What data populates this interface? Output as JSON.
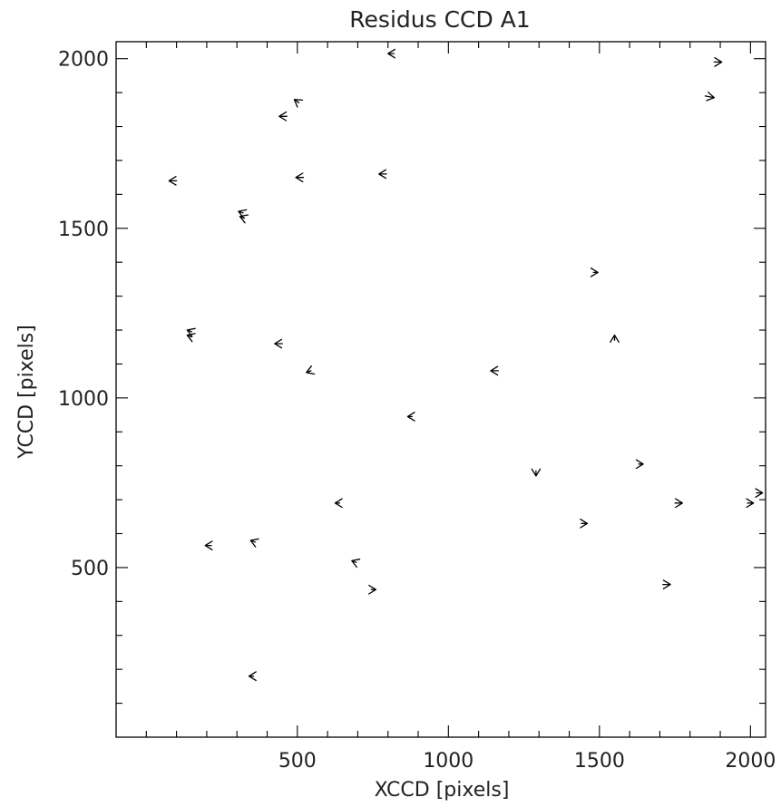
{
  "chart_data": {
    "type": "vector-field",
    "title": "Residus CCD A1",
    "xlabel": "XCCD [pixels]",
    "ylabel": "YCCD [pixels]",
    "xlim": [
      -100,
      2050
    ],
    "ylim": [
      0,
      2050
    ],
    "x_ticks": [
      500,
      1000,
      1500,
      2000
    ],
    "y_ticks": [
      500,
      1000,
      1500,
      2000
    ],
    "x_minor_step": 100,
    "y_minor_step": 100,
    "grid": false,
    "vectors": [
      {
        "x": 820,
        "y": 2015,
        "dx": -20,
        "dy": 0
      },
      {
        "x": 1880,
        "y": 1990,
        "dx": 25,
        "dy": 0
      },
      {
        "x": 1850,
        "y": 1890,
        "dx": 30,
        "dy": -5
      },
      {
        "x": 465,
        "y": 1830,
        "dx": -25,
        "dy": 0
      },
      {
        "x": 505,
        "y": 1870,
        "dx": -15,
        "dy": 10
      },
      {
        "x": 100,
        "y": 1640,
        "dx": -25,
        "dy": 0
      },
      {
        "x": 520,
        "y": 1650,
        "dx": -25,
        "dy": 0
      },
      {
        "x": 795,
        "y": 1660,
        "dx": -25,
        "dy": 0
      },
      {
        "x": 320,
        "y": 1545,
        "dx": -15,
        "dy": 5
      },
      {
        "x": 325,
        "y": 1530,
        "dx": -15,
        "dy": 5
      },
      {
        "x": 1480,
        "y": 1370,
        "dx": 15,
        "dy": 0
      },
      {
        "x": 1550,
        "y": 1170,
        "dx": 0,
        "dy": 15
      },
      {
        "x": 150,
        "y": 1195,
        "dx": -15,
        "dy": 5
      },
      {
        "x": 150,
        "y": 1180,
        "dx": -15,
        "dy": 5
      },
      {
        "x": 450,
        "y": 1160,
        "dx": -25,
        "dy": 0
      },
      {
        "x": 545,
        "y": 1080,
        "dx": -15,
        "dy": -5
      },
      {
        "x": 1165,
        "y": 1080,
        "dx": -25,
        "dy": 0
      },
      {
        "x": 880,
        "y": 945,
        "dx": -15,
        "dy": 0
      },
      {
        "x": 1290,
        "y": 785,
        "dx": 0,
        "dy": -15
      },
      {
        "x": 1630,
        "y": 805,
        "dx": 15,
        "dy": 0
      },
      {
        "x": 2020,
        "y": 720,
        "dx": 20,
        "dy": 0
      },
      {
        "x": 1990,
        "y": 690,
        "dx": 20,
        "dy": 0
      },
      {
        "x": 1750,
        "y": 690,
        "dx": 25,
        "dy": 0
      },
      {
        "x": 640,
        "y": 690,
        "dx": -15,
        "dy": 0
      },
      {
        "x": 1440,
        "y": 630,
        "dx": 20,
        "dy": 0
      },
      {
        "x": 215,
        "y": 565,
        "dx": -20,
        "dy": 0
      },
      {
        "x": 360,
        "y": 575,
        "dx": -15,
        "dy": 5
      },
      {
        "x": 695,
        "y": 515,
        "dx": -15,
        "dy": 5
      },
      {
        "x": 1710,
        "y": 450,
        "dx": 25,
        "dy": 0
      },
      {
        "x": 745,
        "y": 435,
        "dx": 15,
        "dy": 0
      },
      {
        "x": 355,
        "y": 180,
        "dx": -15,
        "dy": 0
      }
    ]
  }
}
